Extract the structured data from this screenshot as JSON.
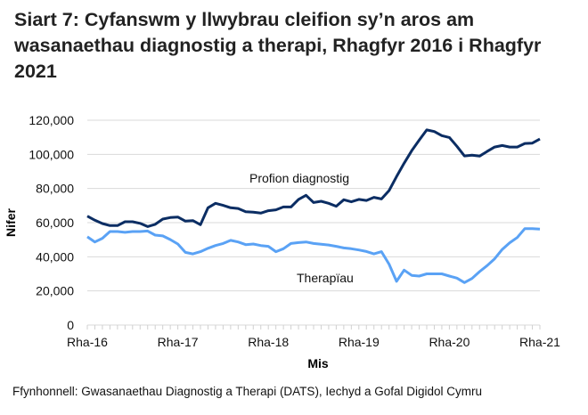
{
  "chart_data": {
    "type": "line",
    "title": "Siart 7: Cyfanswm y llwybrau cleifion sy’n aros am wasanaethau diagnostig a therapi, Rhagfyr 2016 i Rhagfyr 2021",
    "xlabel": "Mis",
    "ylabel": "Nifer",
    "ylim": [
      0,
      120000
    ],
    "yticks": [
      "0",
      "20,000",
      "40,000",
      "60,000",
      "80,000",
      "100,000",
      "120,000"
    ],
    "xtick_labels": [
      "Rha-16",
      "Rha-17",
      "Rha-18",
      "Rha-19",
      "Rha-20",
      "Rha-21"
    ],
    "x_range": [
      "Dec 2016",
      "Dec 2021"
    ],
    "grid": "horizontal",
    "series": [
      {
        "name": "Profion diagnostig",
        "color": "#0b2d63",
        "values": [
          63800,
          61400,
          59500,
          58300,
          58300,
          60500,
          60500,
          59600,
          57700,
          59000,
          62100,
          63000,
          63300,
          60900,
          61200,
          58800,
          68700,
          71300,
          70100,
          68700,
          68300,
          66400,
          66100,
          65600,
          67000,
          67500,
          69200,
          69200,
          73600,
          76000,
          71800,
          72500,
          71300,
          69600,
          73400,
          72200,
          73600,
          73000,
          74800,
          73900,
          78800,
          87000,
          94800,
          102100,
          108300,
          114300,
          113400,
          111000,
          109900,
          104700,
          99100,
          99500,
          99000,
          101700,
          104300,
          105200,
          104300,
          104300,
          106400,
          106600,
          109000
        ]
      },
      {
        "name": "Therapïau",
        "color": "#5aa2f5",
        "values": [
          51700,
          48700,
          50800,
          54800,
          54800,
          54300,
          54800,
          54800,
          55100,
          52700,
          52200,
          50100,
          47500,
          42600,
          41700,
          43000,
          45000,
          46600,
          47800,
          49600,
          48700,
          47100,
          47500,
          46600,
          46100,
          43000,
          44700,
          47800,
          48300,
          48700,
          47800,
          47300,
          46900,
          46100,
          45200,
          44700,
          44000,
          43100,
          41700,
          43000,
          35700,
          25600,
          32200,
          29100,
          28700,
          30000,
          30000,
          30000,
          28700,
          27500,
          24900,
          27300,
          31300,
          34800,
          38800,
          44300,
          48200,
          51300,
          56500,
          56500,
          56200
        ]
      }
    ]
  },
  "source": "Ffynhonnell: Gwasanaethau Diagnostig a Therapi (DATS), Iechyd a Gofal Digidol Cymru"
}
